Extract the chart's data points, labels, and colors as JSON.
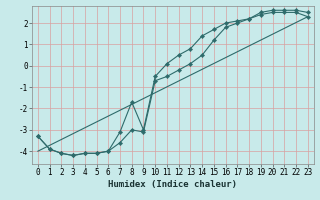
{
  "xlabel": "Humidex (Indice chaleur)",
  "ylabel": "",
  "bg_color": "#c8eaea",
  "grid_color": "#d9a0a0",
  "line_color": "#2e6b6b",
  "xlim": [
    -0.5,
    23.5
  ],
  "ylim": [
    -4.6,
    2.8
  ],
  "xticks": [
    0,
    1,
    2,
    3,
    4,
    5,
    6,
    7,
    8,
    9,
    10,
    11,
    12,
    13,
    14,
    15,
    16,
    17,
    18,
    19,
    20,
    21,
    22,
    23
  ],
  "yticks": [
    -4,
    -3,
    -2,
    -1,
    0,
    1,
    2
  ],
  "upper_x": [
    0,
    1,
    2,
    3,
    4,
    5,
    6,
    7,
    8,
    9,
    10,
    11,
    12,
    13,
    14,
    15,
    16,
    17,
    18,
    19,
    20,
    21,
    22,
    23
  ],
  "upper_y": [
    -3.3,
    -3.9,
    -4.1,
    -4.2,
    -4.1,
    -4.1,
    -4.0,
    -3.1,
    -1.7,
    -3.0,
    -0.5,
    0.1,
    0.5,
    0.8,
    1.4,
    1.7,
    2.0,
    2.1,
    2.2,
    2.5,
    2.6,
    2.6,
    2.6,
    2.5
  ],
  "lower_x": [
    0,
    1,
    2,
    3,
    4,
    5,
    6,
    7,
    8,
    9,
    10,
    11,
    12,
    13,
    14,
    15,
    16,
    17,
    18,
    19,
    20,
    21,
    22,
    23
  ],
  "lower_y": [
    -3.3,
    -3.9,
    -4.1,
    -4.2,
    -4.1,
    -4.1,
    -4.0,
    -3.6,
    -3.0,
    -3.1,
    -0.7,
    -0.5,
    -0.2,
    0.1,
    0.5,
    1.2,
    1.8,
    2.0,
    2.2,
    2.4,
    2.5,
    2.5,
    2.5,
    2.3
  ],
  "line_x": [
    0,
    23
  ],
  "line_y": [
    -4.0,
    2.3
  ],
  "tick_fontsize": 5.5,
  "xlabel_fontsize": 6.5,
  "marker_size": 2.2,
  "line_width": 0.8
}
